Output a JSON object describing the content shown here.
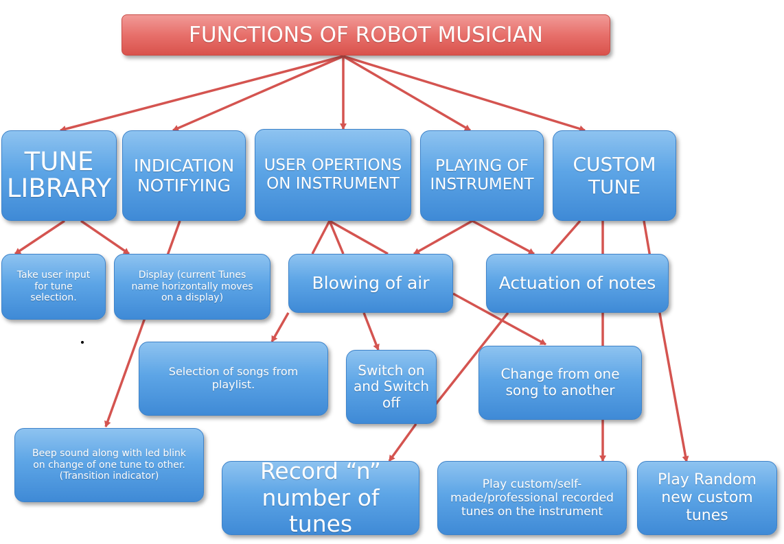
{
  "colors": {
    "arrow": "#d45450",
    "root": "#e3645f",
    "node": "#5da5e6"
  },
  "nodes": {
    "root": "FUNCTIONS OF ROBOT MUSICIAN",
    "tune_library": "TUNE LIBRARY",
    "indication": "INDICATION NOTIFYING",
    "user_operations": "USER OPERTIONS ON INSTRUMENT",
    "playing": "PLAYING OF INSTRUMENT",
    "custom_tune": "CUSTOM TUNE",
    "user_input": "Take user input for tune selection.",
    "display": "Display (current Tunes name horizontally moves on a display)",
    "blowing": "Blowing of air",
    "actuation": "Actuation of notes",
    "selection": "Selection of songs from playlist.",
    "switch": "Switch on and Switch off",
    "change": "Change from one song to another",
    "beep": "Beep sound along with led blink on change of one tune to other. (Transition indicator)",
    "record": "Record “n” number of tunes",
    "play_custom": "Play custom/self-made/professional recorded tunes on the instrument",
    "play_random": "Play Random new custom tunes"
  }
}
